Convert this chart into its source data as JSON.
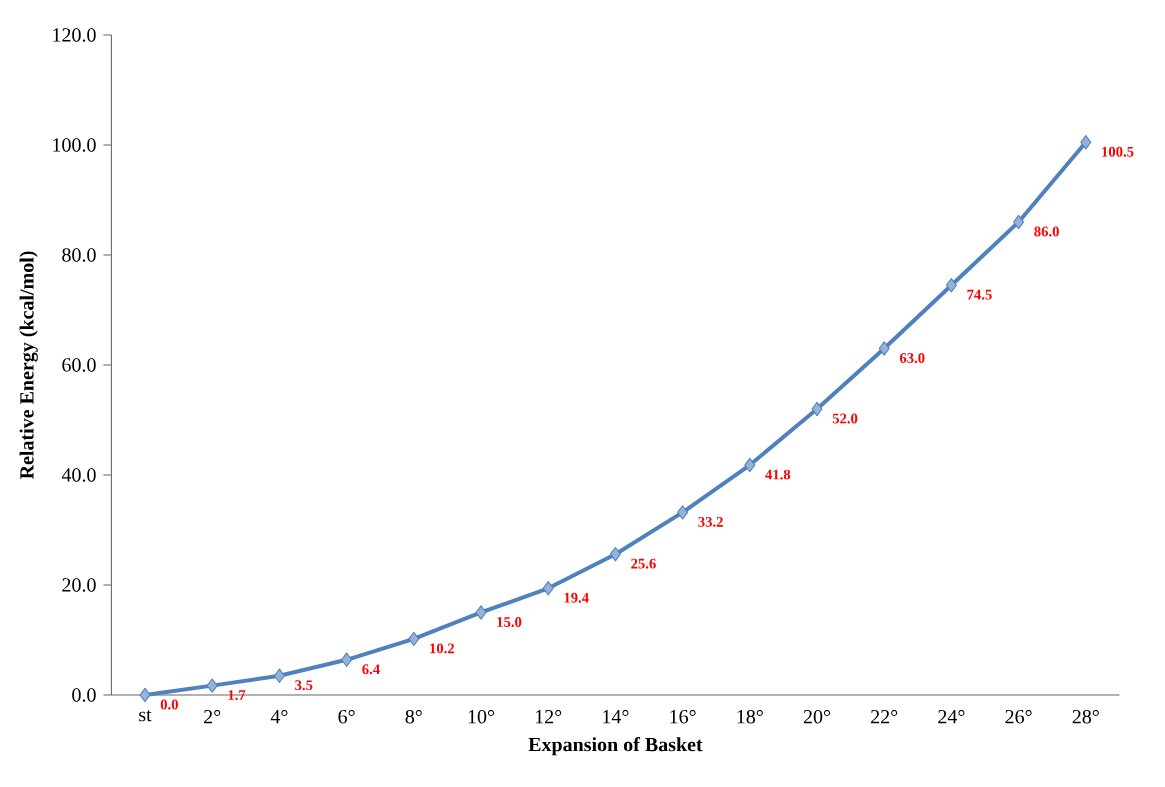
{
  "chart_data": {
    "type": "line",
    "xlabel": "Expansion of Basket",
    "ylabel": "Relative Energy (kcal/mol)",
    "categories": [
      "st",
      "2°",
      "4°",
      "6°",
      "8°",
      "10°",
      "12°",
      "14°",
      "16°",
      "18°",
      "20°",
      "22°",
      "24°",
      "26°",
      "28°"
    ],
    "series": [
      {
        "color": "#4f81bd",
        "values": [
          0.0,
          1.7,
          3.5,
          6.4,
          10.2,
          15.0,
          19.4,
          25.6,
          33.2,
          41.8,
          52.0,
          63.0,
          74.5,
          86.0,
          100.5
        ],
        "value_labels": [
          "0.0",
          "1.7",
          "3.5",
          "6.4",
          "10.2",
          "15.0",
          "19.4",
          "25.6",
          "33.2",
          "41.8",
          "52.0",
          "63.0",
          "74.5",
          "86.0",
          "100.5"
        ]
      }
    ],
    "ylim": [
      0,
      120
    ],
    "yticks": [
      {
        "value": 0,
        "label": "0.0"
      },
      {
        "value": 20,
        "label": "20.0"
      },
      {
        "value": 40,
        "label": "40.0"
      },
      {
        "value": 60,
        "label": "60.0"
      },
      {
        "value": 80,
        "label": "80.0"
      },
      {
        "value": 100,
        "label": "100.0"
      },
      {
        "value": 120,
        "label": "120.0"
      }
    ],
    "marker": "diamond",
    "line_style": "solid",
    "grid": false
  }
}
